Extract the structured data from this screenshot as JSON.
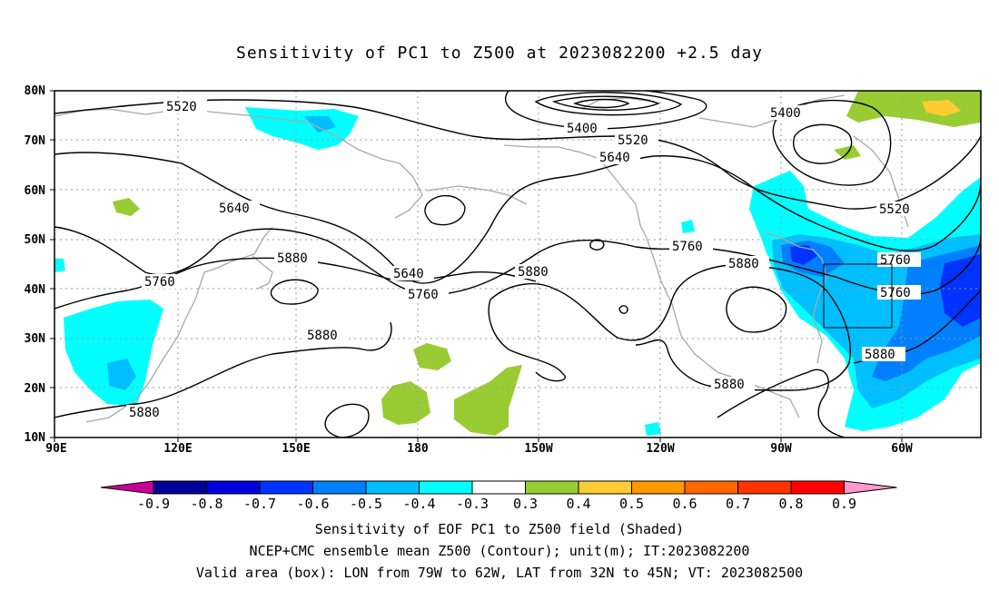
{
  "title": "Sensitivity of PC1 to Z500 at 2023082200 +2.5 day",
  "lat_labels": [
    "80N",
    "70N",
    "60N",
    "50N",
    "40N",
    "30N",
    "20N",
    "10N"
  ],
  "lon_labels": [
    "90E",
    "120E",
    "150E",
    "180",
    "150W",
    "120W",
    "90W",
    "60W"
  ],
  "contour_labels": {
    "c5520a": "5520",
    "c5520b": "5520",
    "c5520c": "5520",
    "c5400a": "5400",
    "c5400b": "5400",
    "c5640a": "5640",
    "c5640b": "5640",
    "c5640c": "5640",
    "c5760a": "5760",
    "c5760b": "5760",
    "c5760c": "5760",
    "c5760d": "5760",
    "c5880a": "5880",
    "c5880b": "5880",
    "c5880c": "5880",
    "c5880d": "5880",
    "c5880e": "5880",
    "c5880f": "5880",
    "c5880g": "5880"
  },
  "colorbar": {
    "labels": [
      "-0.9",
      "-0.8",
      "-0.7",
      "-0.6",
      "-0.5",
      "-0.4",
      "-0.3",
      "0.3",
      "0.4",
      "0.5",
      "0.6",
      "0.7",
      "0.8",
      "0.9"
    ],
    "colors": [
      "#000099",
      "#0000e0",
      "#0033ff",
      "#0080ff",
      "#00bfff",
      "#00ffff",
      "#ffffff",
      "#99cc33",
      "#ffcc33",
      "#ff9900",
      "#ff6600",
      "#ff3300",
      "#ff0000"
    ],
    "left_tip_color": "#cc0099",
    "right_tip_color": "#ff99cc"
  },
  "valid_box": {
    "lon_from": "79W",
    "lon_to": "62W",
    "lat_from": "32N",
    "lat_to": "45N"
  },
  "captions": {
    "line1": "Sensitivity of EOF PC1 to Z500 field (Shaded)",
    "line2": "NCEP+CMC ensemble mean Z500 (Contour); unit(m); IT:2023082200",
    "line3": "Valid area (box): LON from 79W to 62W, LAT from 32N to 45N; VT: 2023082500"
  }
}
